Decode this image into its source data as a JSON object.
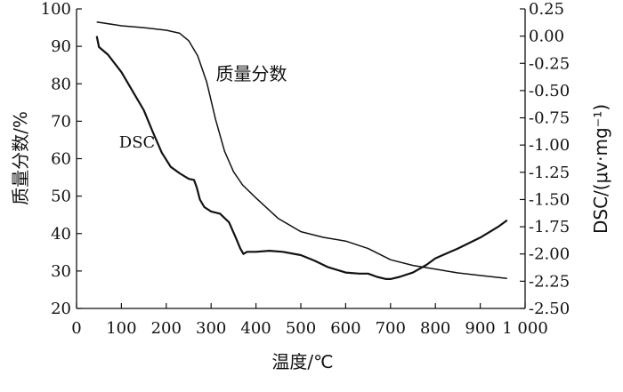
{
  "chart_data": {
    "type": "line",
    "xlabel": "温度/℃",
    "ylabel_left": "质量分数/%",
    "ylabel_right": "DSC/(μv·mg⁻¹)",
    "xlim": [
      0,
      1000
    ],
    "ylim_left": [
      20,
      100
    ],
    "ylim_right": [
      -2.5,
      0.25
    ],
    "x_ticks": [
      0,
      100,
      200,
      300,
      400,
      500,
      600,
      700,
      800,
      900,
      1000
    ],
    "x_tick_labels": [
      "0",
      "100",
      "200",
      "300",
      "400",
      "500",
      "600",
      "700",
      "800",
      "900",
      "1 000"
    ],
    "y_left_ticks": [
      20,
      30,
      40,
      50,
      60,
      70,
      80,
      90,
      100
    ],
    "y_left_tick_labels": [
      "20",
      "30",
      "40",
      "50",
      "60",
      "70",
      "80",
      "90",
      "100"
    ],
    "y_right_ticks": [
      0.25,
      0.0,
      -0.25,
      -0.5,
      -0.75,
      -1.0,
      -1.25,
      -1.5,
      -1.75,
      -2.0,
      -2.25,
      -2.5
    ],
    "y_right_tick_labels": [
      "0.25",
      "0.00",
      "-0.25",
      "-0.50",
      "-0.75",
      "-1.00",
      "-1.25",
      "-1.50",
      "-1.75",
      "-2.00",
      "-2.25",
      "-2.50"
    ],
    "series": [
      {
        "name": "质量分数",
        "axis": "left",
        "x": [
          45,
          100,
          150,
          200,
          230,
          250,
          270,
          290,
          310,
          330,
          350,
          370,
          400,
          450,
          500,
          550,
          600,
          650,
          700,
          750,
          800,
          850,
          900,
          960
        ],
        "y": [
          96.5,
          95.5,
          95.0,
          94.3,
          93.5,
          91.5,
          87.5,
          80.5,
          70.5,
          62.0,
          56.5,
          53.0,
          49.5,
          44.0,
          40.5,
          39.0,
          38.0,
          36.0,
          33.0,
          31.5,
          30.5,
          29.5,
          28.8,
          28.0
        ]
      },
      {
        "name": "DSC",
        "axis": "right",
        "x": [
          45,
          50,
          70,
          100,
          130,
          150,
          170,
          190,
          210,
          230,
          250,
          262,
          268,
          275,
          285,
          300,
          320,
          340,
          355,
          365,
          372,
          380,
          400,
          430,
          460,
          500,
          530,
          560,
          600,
          630,
          650,
          670,
          690,
          700,
          720,
          750,
          780,
          800,
          850,
          900,
          940,
          960
        ],
        "y": [
          0.0,
          -0.1,
          -0.17,
          -0.33,
          -0.54,
          -0.68,
          -0.88,
          -1.07,
          -1.2,
          -1.26,
          -1.31,
          -1.32,
          -1.39,
          -1.5,
          -1.57,
          -1.61,
          -1.63,
          -1.71,
          -1.85,
          -1.95,
          -2.0,
          -1.98,
          -1.98,
          -1.97,
          -1.98,
          -2.01,
          -2.06,
          -2.12,
          -2.17,
          -2.18,
          -2.18,
          -2.21,
          -2.23,
          -2.23,
          -2.21,
          -2.17,
          -2.1,
          -2.04,
          -1.95,
          -1.85,
          -1.75,
          -1.69
        ]
      }
    ],
    "annotations": [
      {
        "text": "质量分数",
        "x": 390,
        "y": 81,
        "axis": "left"
      },
      {
        "text": "DSC",
        "x": 135,
        "y": 63,
        "axis": "left"
      }
    ]
  }
}
